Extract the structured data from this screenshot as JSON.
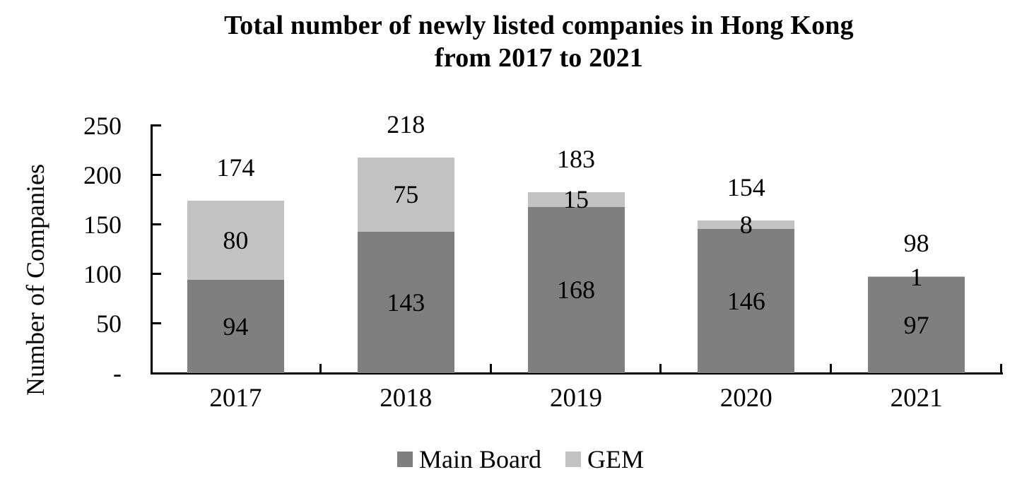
{
  "chart_data": {
    "type": "bar",
    "stacked": true,
    "title": "Total number of newly listed companies in Hong Kong from 2017 to 2021",
    "title_lines": [
      "Total number of newly listed companies in Hong Kong",
      "from 2017 to 2021"
    ],
    "xlabel": "",
    "ylabel": "Number of Companies",
    "categories": [
      "2017",
      "2018",
      "2019",
      "2020",
      "2021"
    ],
    "series": [
      {
        "name": "Main Board",
        "color": "#7F7F7F",
        "values": [
          94,
          143,
          168,
          146,
          97
        ]
      },
      {
        "name": "GEM",
        "color": "#C2C2C2",
        "values": [
          80,
          75,
          15,
          8,
          1
        ]
      }
    ],
    "totals": [
      174,
      218,
      183,
      154,
      98
    ],
    "ylim": [
      0,
      250
    ],
    "y_ticks": [
      {
        "value": 0,
        "label": "-"
      },
      {
        "value": 50,
        "label": "50"
      },
      {
        "value": 100,
        "label": "100"
      },
      {
        "value": 150,
        "label": "150"
      },
      {
        "value": 200,
        "label": "200"
      },
      {
        "value": 250,
        "label": "250"
      }
    ],
    "grid": false,
    "legend_position": "bottom",
    "colors": {
      "text": "#000000",
      "axis": "#000000",
      "background": "#FFFFFF"
    }
  }
}
